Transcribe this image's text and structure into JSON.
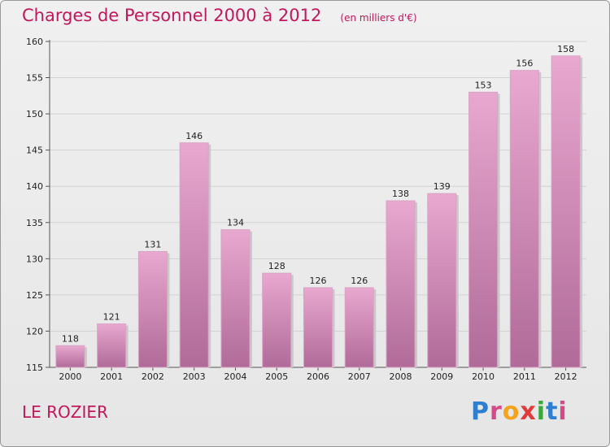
{
  "chart_data": {
    "type": "bar",
    "title": "Charges de Personnel 2000 à 2012",
    "subtitle": "(en milliers d'€)",
    "categories": [
      "2000",
      "2001",
      "2002",
      "2003",
      "2004",
      "2005",
      "2006",
      "2007",
      "2008",
      "2009",
      "2010",
      "2011",
      "2012"
    ],
    "values": [
      118,
      121,
      131,
      146,
      134,
      128,
      126,
      126,
      138,
      139,
      153,
      156,
      158
    ],
    "ylim": [
      115,
      160
    ],
    "yticks": [
      115,
      120,
      125,
      130,
      135,
      140,
      145,
      150,
      155,
      160
    ],
    "grid": true,
    "xlabel": "",
    "ylabel": ""
  },
  "location": "LE ROZIER",
  "brand": {
    "text": "Proxiti",
    "letter_colors": [
      "#2e7fd0",
      "#d64a8a",
      "#f5a21d",
      "#e03a3a",
      "#3aa93a",
      "#2e7fd0",
      "#d64a8a"
    ]
  },
  "colors": {
    "title": "#c2185b",
    "bar_top": "#e8a8cf",
    "bar_bottom": "#b06b98"
  }
}
